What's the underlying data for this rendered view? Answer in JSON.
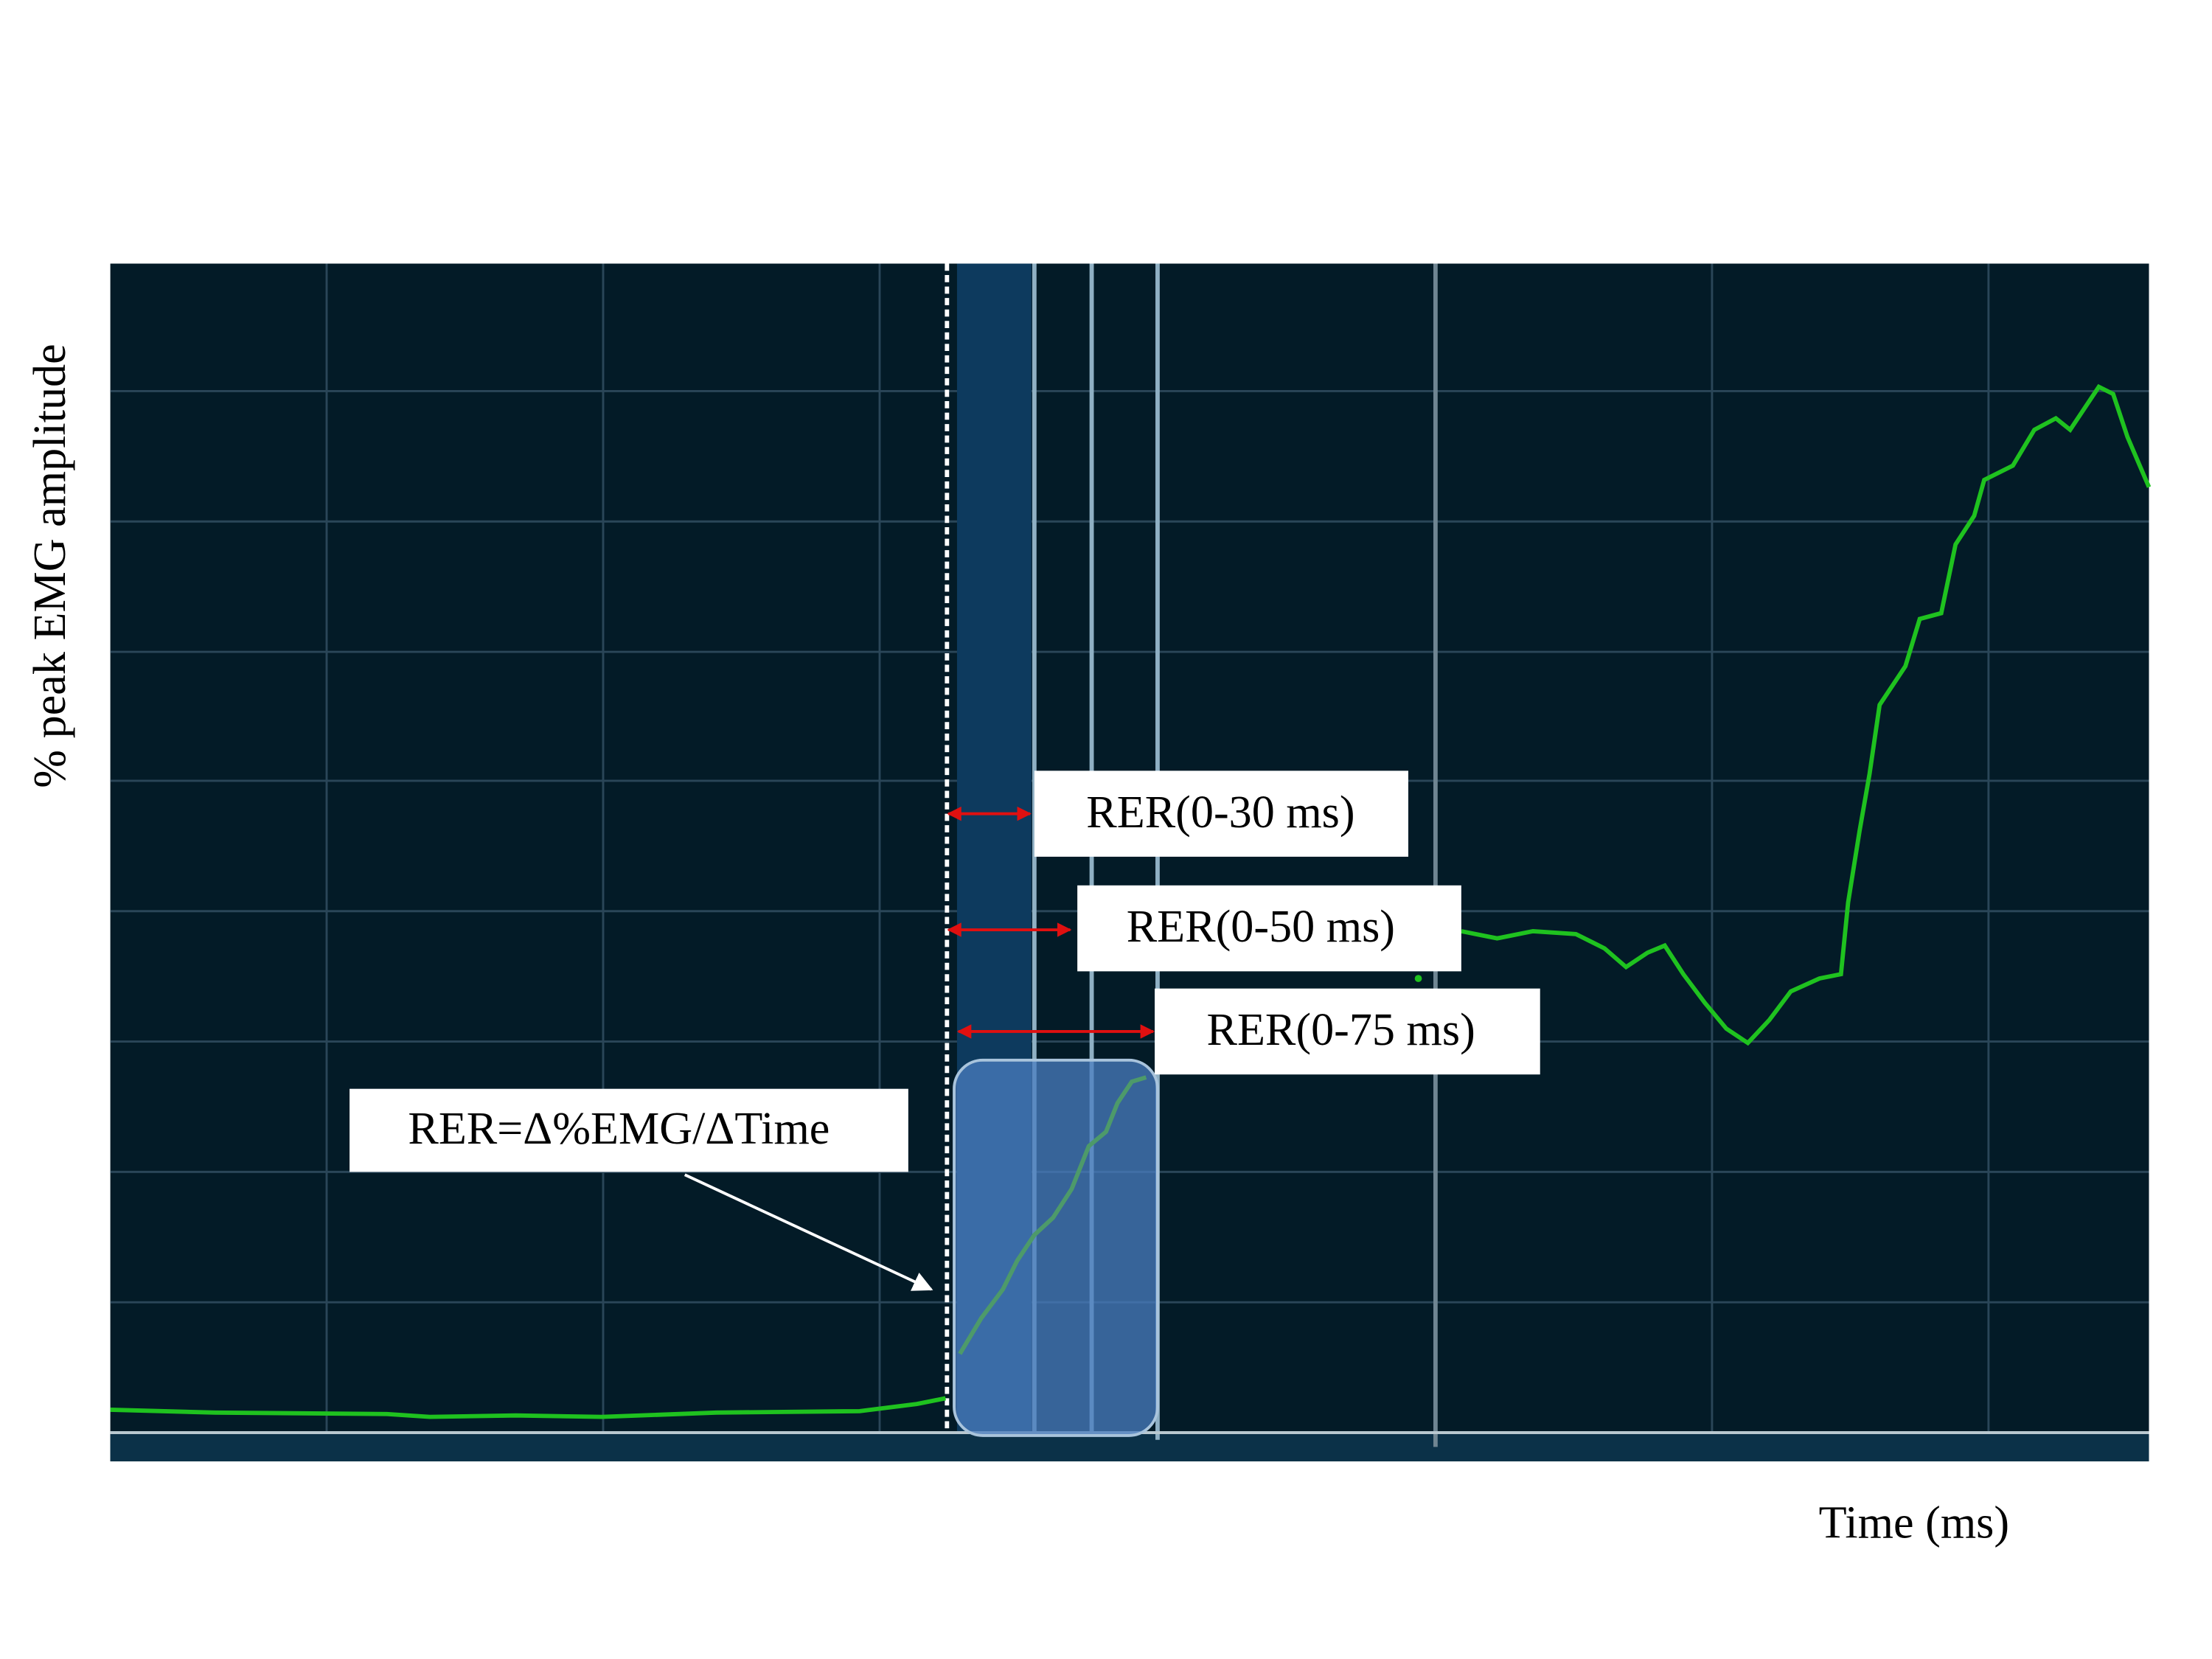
{
  "y_axis_label": "% peak EMG amplitude",
  "x_axis_label": "Time (ms)",
  "annotations": [
    "RER(0-30 ms)",
    "RER(0-50 ms)",
    "RER(0-75 ms)"
  ],
  "formula": "RER=Δ%EMG/ΔTime"
}
